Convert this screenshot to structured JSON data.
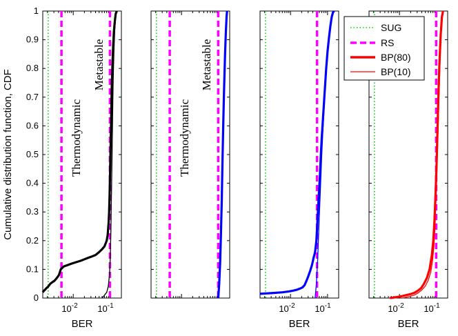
{
  "chart_data": [
    {
      "type": "line",
      "panel": 1,
      "xscale": "log",
      "xlim": [
        0.0015,
        0.2
      ],
      "ylim": [
        0,
        1
      ],
      "xlabel": "BER",
      "ylabel": "Cumulative distribution function, CDF",
      "xticks": [
        0.01,
        0.1
      ],
      "xtick_labels": [
        {
          "base": "10",
          "exp": "-2"
        },
        {
          "base": "10",
          "exp": "-1"
        }
      ],
      "yticks": [
        0,
        0.1,
        0.2,
        0.3,
        0.4,
        0.5,
        0.6,
        0.7,
        0.8,
        0.9,
        1
      ],
      "color": "#000000",
      "sug_x": 0.0021,
      "rs_thermo_x": 0.0048,
      "rs_meta_x": 0.098,
      "annotations": [
        {
          "text": "Thermodynamic",
          "x": 0.0068,
          "y": 0.58
        },
        {
          "text": "Metastable",
          "x": 0.065,
          "y": 0.88
        }
      ],
      "series": [
        {
          "name": "BP(80)",
          "x": [
            0.0015,
            0.0016,
            0.00175,
            0.0019,
            0.0021,
            0.0024,
            0.0027,
            0.0031,
            0.0036,
            0.0041,
            0.0046,
            0.0055,
            0.007,
            0.009,
            0.012,
            0.016,
            0.02,
            0.025,
            0.032,
            0.04,
            0.05,
            0.06,
            0.07,
            0.08,
            0.085,
            0.09,
            0.093,
            0.096,
            0.099,
            0.102,
            0.105,
            0.108,
            0.11,
            0.115,
            0.12,
            0.126,
            0.132,
            0.14,
            0.15
          ],
          "y": [
            0.02,
            0.025,
            0.03,
            0.035,
            0.04,
            0.05,
            0.055,
            0.06,
            0.07,
            0.08,
            0.1,
            0.11,
            0.115,
            0.12,
            0.125,
            0.13,
            0.135,
            0.14,
            0.145,
            0.15,
            0.16,
            0.17,
            0.18,
            0.2,
            0.22,
            0.26,
            0.3,
            0.36,
            0.44,
            0.52,
            0.6,
            0.68,
            0.74,
            0.82,
            0.88,
            0.93,
            0.96,
            0.99,
            1.0
          ]
        },
        {
          "name": "BP(10)",
          "x": [
            0.06,
            0.07,
            0.08,
            0.088,
            0.095,
            0.1,
            0.104,
            0.108,
            0.112,
            0.116,
            0.12,
            0.126,
            0.132,
            0.14,
            0.15
          ],
          "y": [
            0.0,
            0.01,
            0.02,
            0.04,
            0.08,
            0.14,
            0.24,
            0.36,
            0.5,
            0.64,
            0.76,
            0.86,
            0.93,
            0.98,
            1.0
          ]
        }
      ]
    },
    {
      "type": "line",
      "panel": 2,
      "xscale": "log",
      "xlim": [
        0.0015,
        0.2
      ],
      "ylim": [
        0,
        1
      ],
      "xlabel": "",
      "color": "#0000ff",
      "sug_x": 0.0021,
      "rs_thermo_x": 0.0048,
      "rs_meta_x": 0.098,
      "annotations": [
        {
          "text": "Thermodynamic",
          "x": 0.0068,
          "y": 0.58
        },
        {
          "text": "Metastable",
          "x": 0.065,
          "y": 0.88
        }
      ],
      "series": [
        {
          "name": "BP(80)",
          "x": [
            0.098,
            0.104,
            0.11,
            0.116,
            0.122,
            0.128,
            0.135,
            0.142,
            0.15,
            0.158,
            0.165,
            0.17
          ],
          "y": [
            0.0,
            0.05,
            0.12,
            0.22,
            0.34,
            0.48,
            0.62,
            0.74,
            0.85,
            0.93,
            0.98,
            1.0
          ]
        },
        {
          "name": "BP(10)",
          "x": [
            0.1,
            0.106,
            0.112,
            0.118,
            0.124,
            0.13,
            0.137,
            0.144,
            0.152,
            0.16,
            0.167,
            0.172
          ],
          "y": [
            0.0,
            0.05,
            0.12,
            0.22,
            0.34,
            0.48,
            0.62,
            0.74,
            0.85,
            0.93,
            0.98,
            1.0
          ]
        }
      ]
    },
    {
      "type": "line",
      "panel": 3,
      "xscale": "log",
      "xlim": [
        0.0015,
        0.2
      ],
      "ylim": [
        0,
        1
      ],
      "xlabel": "BER",
      "xticks": [
        0.01,
        0.1
      ],
      "xtick_labels": [
        {
          "base": "10",
          "exp": "-2"
        },
        {
          "base": "10",
          "exp": "-1"
        }
      ],
      "color": "#0000ff",
      "sug_x": 0.0021,
      "rs_thermo_x": 0.052,
      "series": [
        {
          "name": "BP(80)",
          "x": [
            0.0015,
            0.003,
            0.006,
            0.009,
            0.012,
            0.015,
            0.018,
            0.021,
            0.024,
            0.027,
            0.03,
            0.034,
            0.038,
            0.042,
            0.046,
            0.05,
            0.054,
            0.058,
            0.062,
            0.066,
            0.07,
            0.075,
            0.08,
            0.086,
            0.092,
            0.1,
            0.11,
            0.12,
            0.13,
            0.14,
            0.15
          ],
          "y": [
            0.015,
            0.017,
            0.02,
            0.023,
            0.026,
            0.029,
            0.033,
            0.037,
            0.045,
            0.06,
            0.075,
            0.095,
            0.115,
            0.14,
            0.16,
            0.2,
            0.28,
            0.36,
            0.42,
            0.5,
            0.56,
            0.62,
            0.68,
            0.74,
            0.8,
            0.86,
            0.91,
            0.95,
            0.98,
            0.995,
            1.0
          ]
        },
        {
          "name": "BP(10)",
          "x": [
            0.046,
            0.05,
            0.054,
            0.058,
            0.062,
            0.066,
            0.07,
            0.075,
            0.08,
            0.086,
            0.092,
            0.1,
            0.11,
            0.12,
            0.13,
            0.14,
            0.15
          ],
          "y": [
            0.0,
            0.05,
            0.13,
            0.24,
            0.33,
            0.42,
            0.5,
            0.58,
            0.65,
            0.72,
            0.78,
            0.85,
            0.9,
            0.94,
            0.97,
            0.99,
            1.0
          ]
        }
      ]
    },
    {
      "type": "line",
      "panel": 4,
      "xscale": "log",
      "xlim": [
        0.0015,
        0.2
      ],
      "ylim": [
        0,
        1
      ],
      "xlabel": "BER",
      "xticks": [
        0.01,
        0.1
      ],
      "xtick_labels": [
        {
          "base": "10",
          "exp": "-2"
        },
        {
          "base": "10",
          "exp": "-1"
        }
      ],
      "color": "#ff0000",
      "sug_x": 0.0021,
      "rs_thermo_x": 0.098,
      "series": [
        {
          "name": "BP(80)",
          "x": [
            0.0055,
            0.008,
            0.011,
            0.015,
            0.02,
            0.025,
            0.03,
            0.038,
            0.045,
            0.055,
            0.065,
            0.075,
            0.082,
            0.088,
            0.094,
            0.1,
            0.106,
            0.112,
            0.12,
            0.13,
            0.14,
            0.15
          ],
          "y": [
            0.0,
            0.003,
            0.006,
            0.01,
            0.014,
            0.018,
            0.024,
            0.034,
            0.048,
            0.07,
            0.1,
            0.15,
            0.2,
            0.27,
            0.36,
            0.46,
            0.58,
            0.7,
            0.82,
            0.92,
            0.98,
            1.0
          ]
        },
        {
          "name": "BP(10)",
          "x": [
            0.012,
            0.018,
            0.025,
            0.032,
            0.04,
            0.05,
            0.06,
            0.07,
            0.078,
            0.085,
            0.091,
            0.097,
            0.103,
            0.11,
            0.118,
            0.126,
            0.135,
            0.145,
            0.155
          ],
          "y": [
            0.0,
            0.005,
            0.01,
            0.018,
            0.028,
            0.042,
            0.062,
            0.09,
            0.13,
            0.18,
            0.25,
            0.34,
            0.45,
            0.58,
            0.72,
            0.84,
            0.93,
            0.98,
            1.0
          ]
        }
      ]
    }
  ],
  "legend": {
    "placement": "top-right",
    "entries": [
      {
        "label": "SUG",
        "style": "dotted",
        "color": "#00cc00",
        "width": 1.5
      },
      {
        "label": "RS",
        "style": "dashed",
        "color": "#ff00ff",
        "width": 3.5
      },
      {
        "label": "BP(80)",
        "style": "solid",
        "color": "#ff0000",
        "width": 3.5
      },
      {
        "label": "BP(10)",
        "style": "solid",
        "color": "#ff0000",
        "width": 1.3
      }
    ]
  },
  "colors": {
    "sug": "#00cc00",
    "rs": "#ff00ff"
  }
}
